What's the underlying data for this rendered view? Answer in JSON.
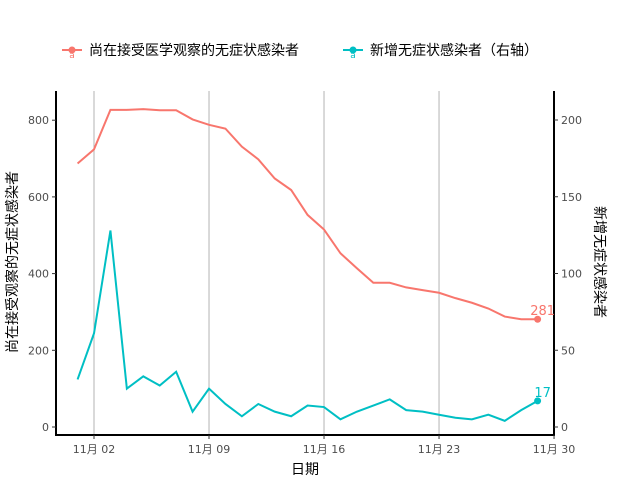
{
  "chart_data": {
    "type": "line",
    "title": "",
    "xlabel": "日期",
    "ylabel": "尚在接受观察的无症状感染者",
    "y2label": "新增无症状感染者",
    "x": [
      "11-01",
      "11-02",
      "11-03",
      "11-04",
      "11-05",
      "11-06",
      "11-07",
      "11-08",
      "11-09",
      "11-10",
      "11-11",
      "11-12",
      "11-13",
      "11-14",
      "11-15",
      "11-16",
      "11-17",
      "11-18",
      "11-19",
      "11-20",
      "11-21",
      "11-22",
      "11-23",
      "11-24",
      "11-25",
      "11-26",
      "11-27",
      "11-28",
      "11-29"
    ],
    "x_ticks": [
      {
        "date": "11-02",
        "label": "11月 02"
      },
      {
        "date": "11-09",
        "label": "11月 09"
      },
      {
        "date": "11-16",
        "label": "11月 16"
      },
      {
        "date": "11-23",
        "label": "11月 23"
      },
      {
        "date": "11-30",
        "label": "11月 30"
      }
    ],
    "xlim": [
      "10-31",
      "11-30"
    ],
    "ylim": [
      0,
      870
    ],
    "y_ticks": [
      0,
      200,
      400,
      600,
      800
    ],
    "y2lim": [
      0,
      218
    ],
    "y2_ticks": [
      0,
      50,
      100,
      150,
      200
    ],
    "grid": "vertical major x only",
    "legend_position": "top",
    "series": [
      {
        "name": "尚在接受医学观察的无症状感染者",
        "axis": "left",
        "color": "#F8766D",
        "values": [
          687,
          724,
          827,
          827,
          829,
          826,
          826,
          802,
          788,
          778,
          731,
          698,
          648,
          618,
          553,
          515,
          453,
          414,
          376,
          376,
          364,
          357,
          350,
          336,
          324,
          309,
          288,
          281,
          281
        ],
        "end_label": "281"
      },
      {
        "name": "新增无症状感染者（右轴）",
        "axis": "right",
        "color": "#00BFC4",
        "values": [
          31,
          61,
          128,
          25,
          33,
          27,
          36,
          10,
          25,
          15,
          7,
          15,
          10,
          7,
          14,
          13,
          5,
          10,
          14,
          18,
          11,
          10,
          8,
          6,
          5,
          8,
          4,
          11,
          17
        ],
        "end_label": "17"
      }
    ]
  }
}
